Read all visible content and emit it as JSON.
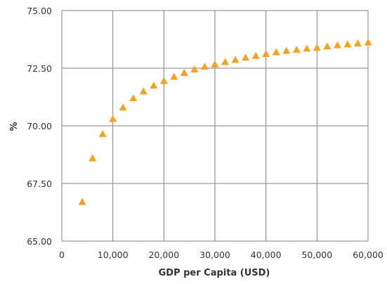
{
  "chart_data": {
    "type": "scatter",
    "title": "",
    "xlabel": "GDP per Capita (USD)",
    "ylabel": "%",
    "xlim": [
      0,
      60000
    ],
    "ylim": [
      65,
      75
    ],
    "xticks": [
      0,
      10000,
      20000,
      30000,
      40000,
      50000,
      60000
    ],
    "xtick_labels": [
      "0",
      "10,000",
      "20,000",
      "30,000",
      "40,000",
      "50,000",
      "60,000"
    ],
    "yticks": [
      65,
      67.5,
      70,
      72.5,
      75
    ],
    "ytick_labels": [
      "65.00",
      "67.50",
      "70.00",
      "72.50",
      "75.00"
    ],
    "grid": true,
    "marker": "triangle",
    "colors": {
      "marker": "#F7A21E",
      "grid": "#7F7F7F",
      "text": "#333333"
    },
    "series": [
      {
        "points": [
          {
            "x": 4000,
            "y": 66.7
          },
          {
            "x": 6000,
            "y": 68.6
          },
          {
            "x": 8000,
            "y": 69.65
          },
          {
            "x": 10000,
            "y": 70.3
          },
          {
            "x": 12000,
            "y": 70.8
          },
          {
            "x": 14000,
            "y": 71.2
          },
          {
            "x": 16000,
            "y": 71.5
          },
          {
            "x": 18000,
            "y": 71.75
          },
          {
            "x": 20000,
            "y": 71.95
          },
          {
            "x": 22000,
            "y": 72.13
          },
          {
            "x": 24000,
            "y": 72.3
          },
          {
            "x": 26000,
            "y": 72.45
          },
          {
            "x": 28000,
            "y": 72.57
          },
          {
            "x": 30000,
            "y": 72.67
          },
          {
            "x": 32000,
            "y": 72.77
          },
          {
            "x": 34000,
            "y": 72.87
          },
          {
            "x": 36000,
            "y": 72.96
          },
          {
            "x": 38000,
            "y": 73.04
          },
          {
            "x": 40000,
            "y": 73.12
          },
          {
            "x": 42000,
            "y": 73.2
          },
          {
            "x": 44000,
            "y": 73.26
          },
          {
            "x": 46000,
            "y": 73.3
          },
          {
            "x": 48000,
            "y": 73.35
          },
          {
            "x": 50000,
            "y": 73.39
          },
          {
            "x": 52000,
            "y": 73.45
          },
          {
            "x": 54000,
            "y": 73.5
          },
          {
            "x": 56000,
            "y": 73.54
          },
          {
            "x": 58000,
            "y": 73.58
          },
          {
            "x": 60000,
            "y": 73.62
          }
        ]
      }
    ]
  }
}
